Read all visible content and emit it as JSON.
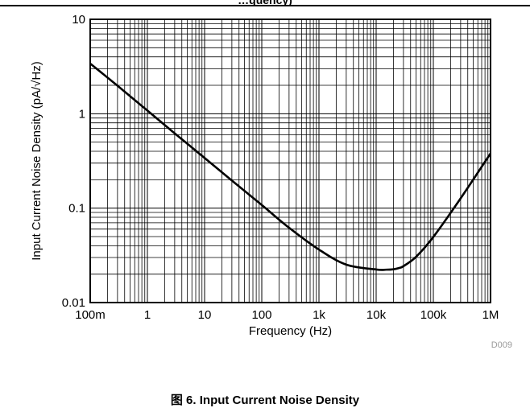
{
  "figure": {
    "top_title_fragment": "…quency)",
    "caption": "图 6. Input Current Noise Density",
    "code": "D009"
  },
  "chart_data": {
    "type": "line",
    "xlabel": "Frequency (Hz)",
    "ylabel": "Input Current Noise Density (pA/√Hz)",
    "x_scale": "log",
    "y_scale": "log",
    "xlim": [
      0.1,
      1000000
    ],
    "ylim": [
      0.01,
      10
    ],
    "grid": true,
    "x_ticks": [
      {
        "value": 0.1,
        "label": "100m"
      },
      {
        "value": 1,
        "label": "1"
      },
      {
        "value": 10,
        "label": "10"
      },
      {
        "value": 100,
        "label": "100"
      },
      {
        "value": 1000,
        "label": "1k"
      },
      {
        "value": 10000,
        "label": "10k"
      },
      {
        "value": 100000,
        "label": "100k"
      },
      {
        "value": 1000000,
        "label": "1M"
      }
    ],
    "y_ticks": [
      {
        "value": 0.01,
        "label": "0.01"
      },
      {
        "value": 0.1,
        "label": "0.1"
      },
      {
        "value": 1,
        "label": "1"
      },
      {
        "value": 10,
        "label": "10"
      }
    ],
    "series": [
      {
        "color": "#000000",
        "x": [
          0.1,
          0.3,
          1,
          3,
          10,
          30,
          100,
          300,
          1000,
          3000,
          10000,
          15000,
          20000,
          25000,
          30000,
          50000,
          100000,
          300000,
          1000000
        ],
        "y": [
          3.4,
          1.98,
          1.08,
          0.62,
          0.34,
          0.196,
          0.108,
          0.062,
          0.0364,
          0.0252,
          0.0224,
          0.0223,
          0.0225,
          0.0232,
          0.0243,
          0.0306,
          0.0496,
          0.127,
          0.38
        ]
      }
    ]
  }
}
